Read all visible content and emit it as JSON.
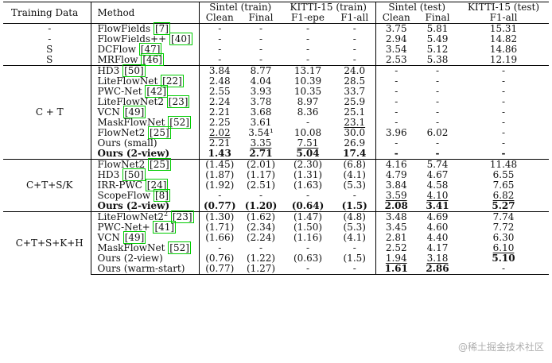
{
  "header": {
    "training_data": "Training Data",
    "method": "Method",
    "groups": [
      "Sintel (train)",
      "KITTI-15 (train)",
      "Sintel (test)",
      "KITTI-15 (test)"
    ],
    "sub": [
      "Clean",
      "Final",
      "F1-epe",
      "F1-all",
      "Clean",
      "Final",
      "F1-all"
    ]
  },
  "sections": [
    {
      "label": "",
      "rows": [
        {
          "data": "-",
          "name": "FlowFields",
          "cite": "[7]",
          "fn": "",
          "bold": false,
          "ul": [],
          "vals": [
            "-",
            "-",
            "-",
            "-",
            "3.75",
            "5.81",
            "15.31"
          ]
        },
        {
          "data": "-",
          "name": "FlowFields++",
          "cite": "[40]",
          "fn": "",
          "bold": false,
          "ul": [],
          "vals": [
            "-",
            "-",
            "-",
            "-",
            "2.94",
            "5.49",
            "14.82"
          ]
        },
        {
          "data": "S",
          "name": "DCFlow",
          "cite": "[47]",
          "fn": "",
          "bold": false,
          "ul": [],
          "vals": [
            "-",
            "-",
            "-",
            "-",
            "3.54",
            "5.12",
            "14.86"
          ]
        },
        {
          "data": "S",
          "name": "MRFlow",
          "cite": "[46]",
          "fn": "",
          "bold": false,
          "ul": [],
          "vals": [
            "-",
            "-",
            "-",
            "-",
            "2.53",
            "5.38",
            "12.19"
          ]
        }
      ]
    },
    {
      "label": "C + T",
      "rows": [
        {
          "data": "",
          "name": "HD3",
          "cite": "[50]",
          "fn": "",
          "bold": false,
          "ul": [],
          "vals": [
            "3.84",
            "8.77",
            "13.17",
            "24.0",
            "-",
            "-",
            "-"
          ]
        },
        {
          "data": "",
          "name": "LiteFlowNet",
          "cite": "[22]",
          "fn": "",
          "bold": false,
          "ul": [],
          "vals": [
            "2.48",
            "4.04",
            "10.39",
            "28.5",
            "-",
            "-",
            "-"
          ]
        },
        {
          "data": "",
          "name": "PWC-Net",
          "cite": "[42]",
          "fn": "",
          "bold": false,
          "ul": [],
          "vals": [
            "2.55",
            "3.93",
            "10.35",
            "33.7",
            "-",
            "-",
            "-"
          ]
        },
        {
          "data": "",
          "name": "LiteFlowNet2",
          "cite": "[23]",
          "fn": "",
          "bold": false,
          "ul": [],
          "vals": [
            "2.24",
            "3.78",
            "8.97",
            "25.9",
            "-",
            "-",
            "-"
          ]
        },
        {
          "data": "",
          "name": "VCN",
          "cite": "[49]",
          "fn": "",
          "bold": false,
          "ul": [],
          "vals": [
            "2.21",
            "3.68",
            "8.36",
            "25.1",
            "-",
            "-",
            "-"
          ]
        },
        {
          "data": "",
          "name": "MaskFlowNet",
          "cite": "[52]",
          "fn": "",
          "bold": false,
          "ul": [
            3
          ],
          "vals": [
            "2.25",
            "3.61",
            "-",
            "23.1",
            "-",
            "-",
            "-"
          ]
        },
        {
          "data": "",
          "name": "FlowNet2",
          "cite": "[25]",
          "fn": "",
          "bold": false,
          "ul": [
            0
          ],
          "vals": [
            "2.02",
            "3.54¹",
            "10.08",
            "30.0",
            "3.96",
            "6.02",
            "-"
          ]
        },
        {
          "data": "",
          "name": "Ours (small)",
          "cite": "",
          "fn": "",
          "bold": false,
          "ul": [
            1,
            2
          ],
          "vals": [
            "2.21",
            "3.35",
            "7.51",
            "26.9",
            "-",
            "-",
            "-"
          ]
        },
        {
          "data": "",
          "name": "Ours (2-view)",
          "cite": "",
          "fn": "",
          "bold": true,
          "ul": [],
          "vals": [
            "1.43",
            "2.71",
            "5.04",
            "17.4",
            "-",
            "-",
            "-"
          ]
        }
      ]
    },
    {
      "label": "C+T+S/K",
      "rows": [
        {
          "data": "",
          "name": "FlowNet2",
          "cite": "[25]",
          "fn": "",
          "bold": false,
          "ul": [],
          "vals": [
            "(1.45)",
            "(2.01)",
            "(2.30)",
            "(6.8)",
            "4.16",
            "5.74",
            "11.48"
          ]
        },
        {
          "data": "",
          "name": "HD3",
          "cite": "[50]",
          "fn": "",
          "bold": false,
          "ul": [],
          "vals": [
            "(1.87)",
            "(1.17)",
            "(1.31)",
            "(4.1)",
            "4.79",
            "4.67",
            "6.55"
          ]
        },
        {
          "data": "",
          "name": "IRR-PWC",
          "cite": "[24]",
          "fn": "",
          "bold": false,
          "ul": [],
          "vals": [
            "(1.92)",
            "(2.51)",
            "(1.63)",
            "(5.3)",
            "3.84",
            "4.58",
            "7.65"
          ]
        },
        {
          "data": "",
          "name": "ScopeFlow",
          "cite": "[8]",
          "fn": "",
          "bold": false,
          "ul": [
            4,
            5,
            6
          ],
          "vals": [
            "-",
            "-",
            "-",
            "-",
            "3.59",
            "4.10",
            "6.82"
          ]
        },
        {
          "data": "",
          "name": "Ours (2-view)",
          "cite": "",
          "fn": "",
          "bold": true,
          "ul": [],
          "vals": [
            "(0.77)",
            "(1.20)",
            "(0.64)",
            "(1.5)",
            "2.08",
            "3.41",
            "5.27"
          ]
        }
      ]
    },
    {
      "label": "C+T+S+K+H",
      "rows": [
        {
          "data": "",
          "name": "LiteFlowNet2",
          "cite": "[23]",
          "fn": "2",
          "bold": false,
          "ul": [],
          "vals": [
            "(1.30)",
            "(1.62)",
            "(1.47)",
            "(4.8)",
            "3.48",
            "4.69",
            "7.74"
          ]
        },
        {
          "data": "",
          "name": "PWC-Net+",
          "cite": "[41]",
          "fn": "",
          "bold": false,
          "ul": [],
          "vals": [
            "(1.71)",
            "(2.34)",
            "(1.50)",
            "(5.3)",
            "3.45",
            "4.60",
            "7.72"
          ]
        },
        {
          "data": "",
          "name": "VCN",
          "cite": "[49]",
          "fn": "",
          "bold": false,
          "ul": [],
          "vals": [
            "(1.66)",
            "(2.24)",
            "(1.16)",
            "(4.1)",
            "2.81",
            "4.40",
            "6.30"
          ]
        },
        {
          "data": "",
          "name": "MaskFlowNet",
          "cite": "[52]",
          "fn": "",
          "bold": false,
          "ul": [
            6
          ],
          "vals": [
            "-",
            "-",
            "-",
            "-",
            "2.52",
            "4.17",
            "6.10"
          ]
        },
        {
          "data": "",
          "name": "Ours (2-view)",
          "cite": "",
          "fn": "",
          "bold": false,
          "ul": [
            4,
            5
          ],
          "vals": [
            "(0.76)",
            "(1.22)",
            "(0.63)",
            "(1.5)",
            "1.94",
            "3.18",
            "5.10"
          ],
          "boldvals": [
            6
          ]
        },
        {
          "data": "",
          "name": "Ours (warm-start)",
          "cite": "",
          "fn": "",
          "bold": false,
          "ul": [],
          "vals": [
            "(0.77)",
            "(1.27)",
            "-",
            "-",
            "1.61",
            "2.86",
            "-"
          ],
          "boldvals": [
            4,
            5
          ]
        }
      ]
    }
  ],
  "watermark": "@稀土掘金技术社区"
}
